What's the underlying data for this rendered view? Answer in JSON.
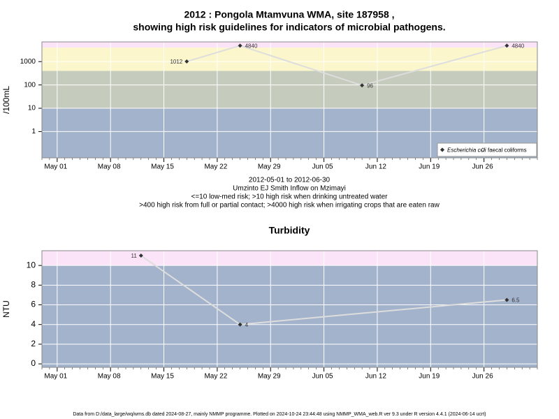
{
  "chart_data": [
    {
      "type": "line",
      "title": [
        "2012 : Pongola Mtamvuna WMA, site 187958 ,",
        "showing high risk guidelines for indicators of microbial pathogens."
      ],
      "ylabel": "/100mL",
      "notes": [
        "2012-05-01 to 2012-06-30",
        "Umzinto EJ Smith Inflow on Mzimayi",
        "<=10 low-med risk; >10 high risk when drinking untreated water",
        ">400 high risk from full or partial contact; >4000 high risk when irrigating crops that are eaten raw"
      ],
      "x": [
        "2012-05-18",
        "2012-05-25",
        "2012-06-10",
        "2012-06-29"
      ],
      "series": [
        {
          "name": "Escherichia coli",
          "color": "#333333",
          "values": [
            1012,
            4840,
            96,
            4840
          ]
        },
        {
          "name": "faecal coliforms",
          "color": "#333333",
          "values": [
            null,
            null,
            null,
            null
          ]
        }
      ],
      "line_color": "#dddddd",
      "log_y": true,
      "ylim": [
        0.075,
        7000
      ],
      "yticks": [
        1,
        10,
        100,
        1000
      ],
      "xlim": [
        "2012-04-29",
        "2012-07-03"
      ],
      "xticks": [
        {
          "value": "2012-05-01",
          "label": "May 01"
        },
        {
          "value": "2012-05-08",
          "label": "May 08"
        },
        {
          "value": "2012-05-15",
          "label": "May 15"
        },
        {
          "value": "2012-05-22",
          "label": "May 22"
        },
        {
          "value": "2012-05-29",
          "label": "May 29"
        },
        {
          "value": "2012-06-05",
          "label": "Jun 05"
        },
        {
          "value": "2012-06-12",
          "label": "Jun 12"
        },
        {
          "value": "2012-06-19",
          "label": "Jun 19"
        },
        {
          "value": "2012-06-26",
          "label": "Jun 26"
        }
      ],
      "thresholds": [
        10,
        400,
        4000
      ],
      "band_colors": [
        "#a3b3cc",
        "#c5cbbd",
        "#fbf6cc",
        "#fce4f8"
      ],
      "grid": true,
      "legend": "bottom right"
    },
    {
      "type": "line",
      "title": [
        "Turbidity"
      ],
      "ylabel": "NTU",
      "x": [
        "2012-05-12",
        "2012-05-25",
        "2012-06-29"
      ],
      "series": [
        {
          "name": "Turbidity",
          "color": "#333333",
          "values": [
            11,
            4,
            6.5
          ]
        }
      ],
      "line_color": "#dddddd",
      "log_y": false,
      "ylim": [
        -0.35,
        11.5
      ],
      "yticks": [
        0,
        2,
        4,
        6,
        8,
        10
      ],
      "xlim": [
        "2012-04-29",
        "2012-07-03"
      ],
      "xticks": [
        {
          "value": "2012-05-01",
          "label": "May 01"
        },
        {
          "value": "2012-05-08",
          "label": "May 08"
        },
        {
          "value": "2012-05-15",
          "label": "May 15"
        },
        {
          "value": "2012-05-22",
          "label": "May 22"
        },
        {
          "value": "2012-05-29",
          "label": "May 29"
        },
        {
          "value": "2012-06-05",
          "label": "Jun 05"
        },
        {
          "value": "2012-06-12",
          "label": "Jun 12"
        },
        {
          "value": "2012-06-19",
          "label": "Jun 19"
        },
        {
          "value": "2012-06-26",
          "label": "Jun 26"
        }
      ],
      "thresholds": [
        10
      ],
      "band_colors": [
        "#a3b3cc",
        "#fce4f8"
      ],
      "grid": true
    }
  ],
  "footer": "Data from D:/data_large/wq/wms.db dated 2024-08-27, mainly NMMP programme. Plotted on 2024-10-24 23:44:48 using NMMP_WMA_web.R ver 9.3 under R version 4.4.1 (2024-06-14 ucrt)"
}
